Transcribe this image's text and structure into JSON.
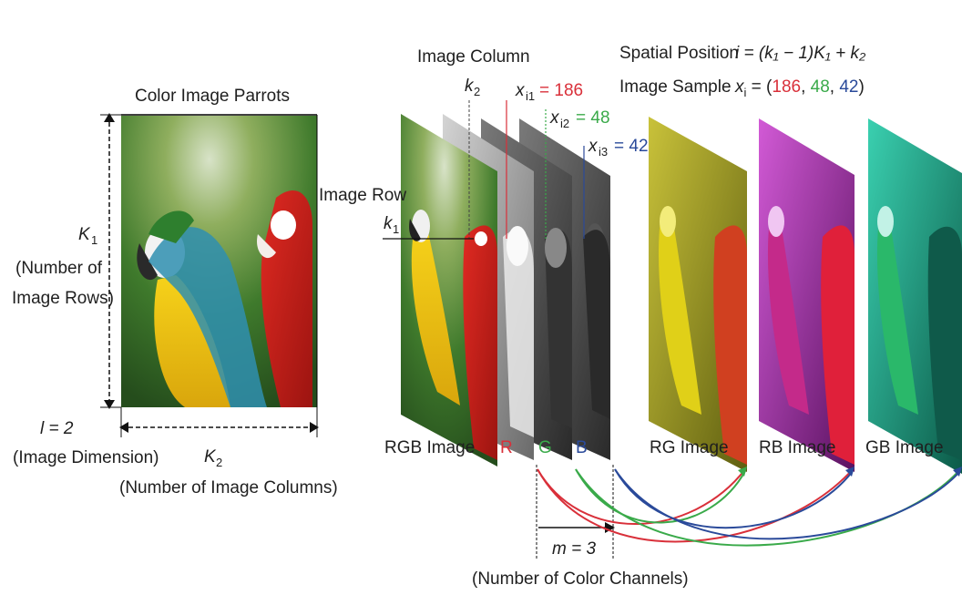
{
  "title": "Color Image Parrots",
  "left": {
    "k1_symbol": "K",
    "k1_sub": "1",
    "rows_line1": "(Number of",
    "rows_line2": "Image Rows)",
    "l_eq": "l = 2",
    "image_dimension": "(Image Dimension)",
    "k2_symbol": "K",
    "k2_sub": "2",
    "columns": "(Number of Image Columns)"
  },
  "labels": {
    "image_column": "Image Column",
    "image_row": "Image Row",
    "k1": "k",
    "k1_sub": "1",
    "k2": "k",
    "k2_sub": "2",
    "xi1": "x",
    "xi1_sub": "i1",
    "xi1_val": "= 186",
    "xi2": "x",
    "xi2_sub": "i2",
    "xi2_val": "= 48",
    "xi3": "x",
    "xi3_sub": "i3",
    "xi3_val": "= 42",
    "spatial_position": "Spatial Position",
    "spatial_formula": "i = (k₁ − 1)K₁ + k₂",
    "image_sample": "Image Sample",
    "sample_prefix": "x",
    "sample_sub": "i",
    "sample_eq": " = (",
    "sample_r": "186",
    "sample_g": "48",
    "sample_b": "42",
    "sample_close": ")",
    "rgb_image": "RGB Image",
    "r": "R",
    "g": "G",
    "b": "B",
    "rg_image": "RG Image",
    "rb_image": "RB Image",
    "gb_image": "GB Image",
    "m_eq": "m = 3",
    "channels": "(Number of Color Channels)"
  },
  "colors": {
    "red": "#d9303a",
    "green": "#3aaa4a",
    "blue": "#2a4a9a"
  }
}
